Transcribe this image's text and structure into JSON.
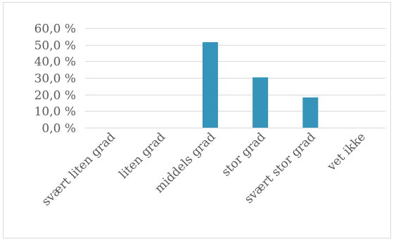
{
  "chart_data": {
    "type": "bar",
    "title": "",
    "xlabel": "",
    "ylabel": "",
    "categories": [
      "svært liten grad",
      "liten grad",
      "middels grad",
      "stor grad",
      "svært stor grad",
      "vet ikke"
    ],
    "values": [
      0,
      0,
      51.5,
      30.3,
      18.2,
      0
    ],
    "ylim": [
      0,
      60
    ],
    "y_ticks": [
      "0,0 %",
      "10,0 %",
      "20,0 %",
      "30,0 %",
      "40,0 %",
      "50,0 %",
      "60,0 %"
    ],
    "grid": true,
    "legend": "none",
    "bar_color": "#3494ba",
    "grid_color": "#d9d9d9"
  }
}
